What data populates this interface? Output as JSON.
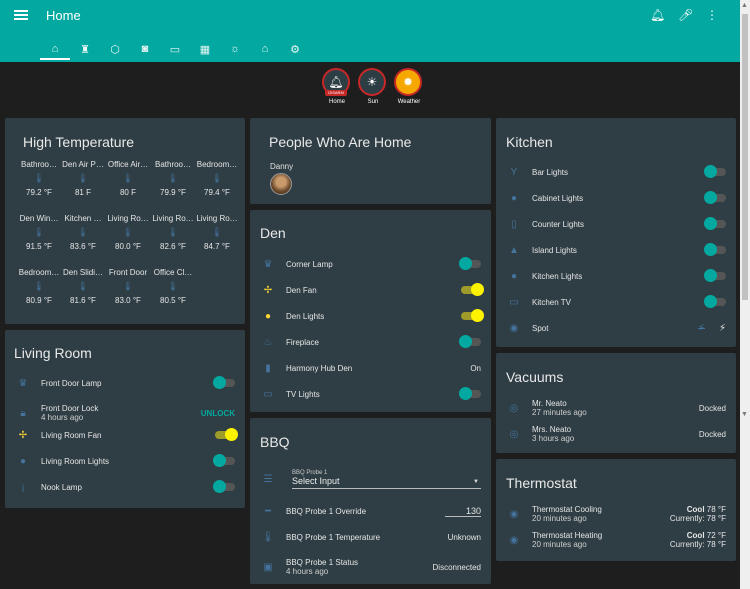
{
  "app": {
    "title": "Home"
  },
  "tabs": [
    {
      "icon": "home-icon",
      "glyph": "⌂"
    },
    {
      "icon": "robot-icon",
      "glyph": "♜"
    },
    {
      "icon": "home-assistant-icon",
      "glyph": "⬡"
    },
    {
      "icon": "camera-icon",
      "glyph": "◙"
    },
    {
      "icon": "cast-icon",
      "glyph": "▭"
    },
    {
      "icon": "calendar-icon",
      "glyph": "▦"
    },
    {
      "icon": "sun-icon",
      "glyph": "☼"
    },
    {
      "icon": "house-icon",
      "glyph": "⌂"
    },
    {
      "icon": "gear-icon",
      "glyph": "⚙"
    }
  ],
  "badges": [
    {
      "label": "Home",
      "tag": "DISARM"
    },
    {
      "label": "Sun"
    },
    {
      "label": "Weather"
    }
  ],
  "high_temperature": {
    "title": "High Temperature",
    "items": [
      {
        "name": "Bathroo…",
        "value": "79.2 °F"
      },
      {
        "name": "Den Air P…",
        "value": "81 F"
      },
      {
        "name": "Office Air…",
        "value": "80 F"
      },
      {
        "name": "Bathroo…",
        "value": "79.9 °F"
      },
      {
        "name": "Bedroom…",
        "value": "79.4 °F"
      },
      {
        "name": "Den Win…",
        "value": "91.5 °F"
      },
      {
        "name": "Kitchen …",
        "value": "83.6 °F"
      },
      {
        "name": "Living Ro…",
        "value": "80.0 °F"
      },
      {
        "name": "Living Ro…",
        "value": "82.6 °F"
      },
      {
        "name": "Living Ro…",
        "value": "84.7 °F"
      },
      {
        "name": "Bedroom…",
        "value": "80.9 °F"
      },
      {
        "name": "Den Slidi…",
        "value": "81.6 °F"
      },
      {
        "name": "Front Door",
        "value": "83.0 °F"
      },
      {
        "name": "Office Cl…",
        "value": "80.5 °F"
      }
    ]
  },
  "living_room": {
    "title": "Living Room",
    "rows": [
      {
        "name": "Front Door Lamp",
        "type": "toggle",
        "on": false,
        "icon": "lamp-icon"
      },
      {
        "name": "Front Door Lock",
        "secondary": "4 hours ago",
        "type": "action",
        "action": "UNLOCK",
        "icon": "lock-icon"
      },
      {
        "name": "Living Room Fan",
        "type": "toggle",
        "on": true,
        "icon": "fan-icon"
      },
      {
        "name": "Living Room Lights",
        "type": "toggle",
        "on": false,
        "icon": "bulb-icon"
      },
      {
        "name": "Nook Lamp",
        "type": "toggle",
        "on": false,
        "icon": "floor-lamp-icon"
      }
    ]
  },
  "people": {
    "title": "People Who Are Home",
    "person": "Danny"
  },
  "den": {
    "title": "Den",
    "rows": [
      {
        "name": "Corner Lamp",
        "type": "toggle",
        "on": false,
        "icon": "lamp-icon"
      },
      {
        "name": "Den Fan",
        "type": "toggle",
        "on": true,
        "icon": "fan-icon"
      },
      {
        "name": "Den Lights",
        "type": "toggle",
        "on": true,
        "icon": "bulb-icon"
      },
      {
        "name": "Fireplace",
        "type": "toggle",
        "on": false,
        "icon": "fire-icon"
      },
      {
        "name": "Harmony Hub Den",
        "type": "state",
        "state": "On",
        "icon": "remote-icon"
      },
      {
        "name": "TV Lights",
        "type": "toggle",
        "on": false,
        "icon": "tv-icon"
      }
    ]
  },
  "bbq": {
    "title": "BBQ",
    "select_label": "BBQ Probe 1",
    "select_value": "Select Input",
    "rows": [
      {
        "name": "BBQ Probe 1 Override",
        "type": "input",
        "value": "130",
        "icon": "ruler-icon"
      },
      {
        "name": "BBQ Probe 1 Temperature",
        "type": "state",
        "state": "Unknown",
        "icon": "thermometer-icon"
      },
      {
        "name": "BBQ Probe 1 Status",
        "secondary": "4 hours ago",
        "type": "state",
        "state": "Disconnected",
        "icon": "status-icon"
      }
    ]
  },
  "kitchen": {
    "title": "Kitchen",
    "rows": [
      {
        "name": "Bar Lights",
        "type": "toggle",
        "on": false,
        "icon": "glass-icon"
      },
      {
        "name": "Cabinet Lights",
        "type": "toggle",
        "on": false,
        "icon": "bulb-icon"
      },
      {
        "name": "Counter Lights",
        "type": "toggle",
        "on": false,
        "icon": "fridge-icon"
      },
      {
        "name": "Island Lights",
        "type": "toggle",
        "on": false,
        "icon": "ceiling-light-icon"
      },
      {
        "name": "Kitchen Lights",
        "type": "toggle",
        "on": false,
        "icon": "bulb-icon"
      },
      {
        "name": "Kitchen TV",
        "type": "toggle",
        "on": false,
        "icon": "tv-icon"
      },
      {
        "name": "Spot",
        "type": "bolts",
        "icon": "spot-icon"
      }
    ]
  },
  "vacuums": {
    "title": "Vacuums",
    "rows": [
      {
        "name": "Mr. Neato",
        "secondary": "27 minutes ago",
        "state": "Docked",
        "icon": "vacuum-icon"
      },
      {
        "name": "Mrs. Neato",
        "secondary": "3 hours ago",
        "state": "Docked",
        "icon": "vacuum-icon"
      }
    ]
  },
  "thermostat": {
    "title": "Thermostat",
    "rows": [
      {
        "name": "Thermostat Cooling",
        "secondary": "20 minutes ago",
        "mode": "Cool",
        "target": "78 °F",
        "current": "Currently: 78 °F",
        "icon": "thermostat-icon"
      },
      {
        "name": "Thermostat Heating",
        "secondary": "20 minutes ago",
        "mode": "Cool",
        "target": "72 °F",
        "current": "Currently: 78 °F",
        "icon": "thermostat-icon"
      }
    ]
  },
  "colors": {
    "primary": "#03a9a0",
    "card": "#2f3e44",
    "background": "#1e1e1e",
    "toggle_on": "#fdf300",
    "alert": "#c62828"
  }
}
